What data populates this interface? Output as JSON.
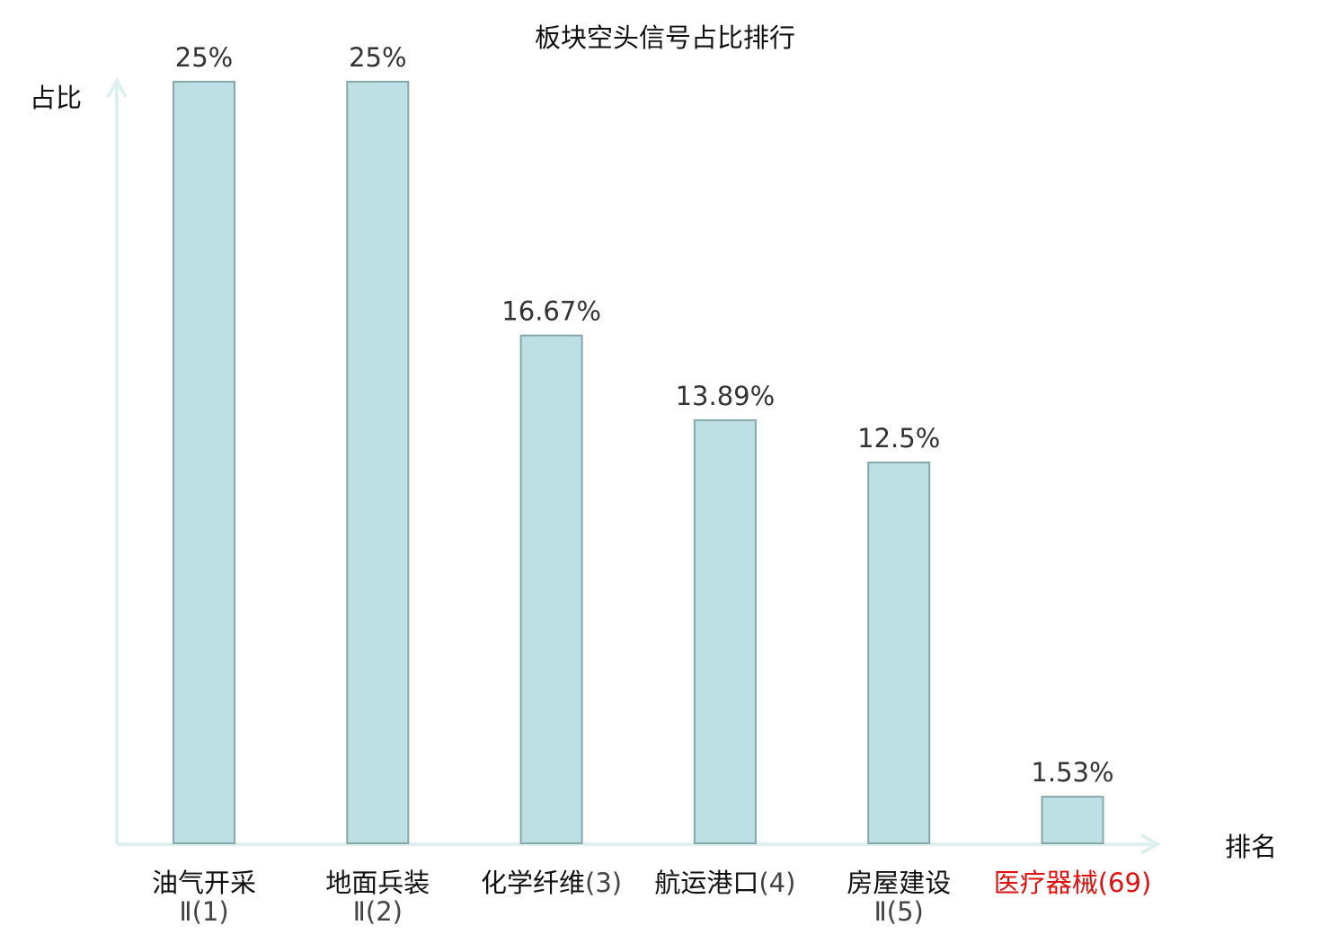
{
  "chart_data": {
    "type": "bar",
    "title": "板块空头信号占比排行",
    "xlabel": "排名",
    "ylabel": "占比",
    "ylim": [
      0,
      25
    ],
    "grid": false,
    "categories": [
      {
        "name": "油气开采",
        "rank_line2": "Ⅱ(1)",
        "rank_inline": "",
        "highlight": false
      },
      {
        "name": "地面兵装",
        "rank_line2": "Ⅱ(2)",
        "rank_inline": "",
        "highlight": false
      },
      {
        "name": "化学纤维",
        "rank_line2": "",
        "rank_inline": "(3)",
        "highlight": false
      },
      {
        "name": "航运港口",
        "rank_line2": "",
        "rank_inline": "(4)",
        "highlight": false
      },
      {
        "name": "房屋建设",
        "rank_line2": "Ⅱ(5)",
        "rank_inline": "",
        "highlight": false
      },
      {
        "name": "医疗器械",
        "rank_line2": "",
        "rank_inline": "(69)",
        "highlight": true
      }
    ],
    "values": [
      25,
      25,
      16.67,
      13.89,
      12.5,
      1.53
    ],
    "value_labels": [
      "25%",
      "25%",
      "16.67%",
      "13.89%",
      "12.5%",
      "1.53%"
    ],
    "colors": {
      "bar_fill": "#bce0e3",
      "bar_stroke": "#86a8ab",
      "axis": "#ddf0ee",
      "highlight_text": "#dd1111"
    }
  }
}
